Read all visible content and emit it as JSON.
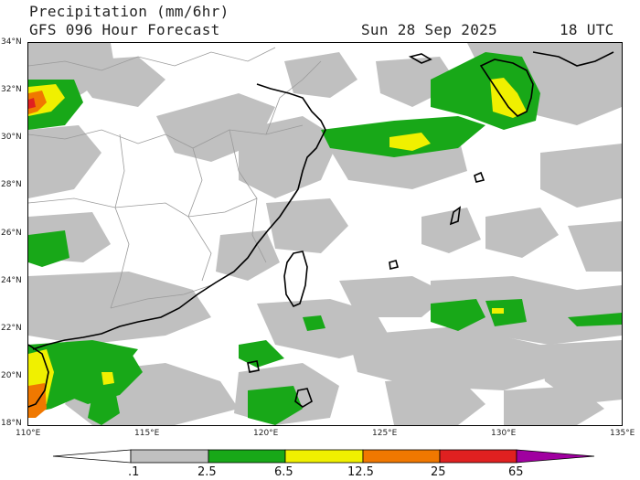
{
  "header": {
    "title": "Precipitation (mm/6hr)",
    "subtitle": "GFS 096 Hour Forecast",
    "date": "Sun 28 Sep 2025",
    "time": "18 UTC"
  },
  "map": {
    "lat_labels": [
      "34°N",
      "32°N",
      "30°N",
      "28°N",
      "26°N",
      "24°N",
      "22°N",
      "20°N",
      "18°N"
    ],
    "lon_labels": [
      "110°E",
      "115°E",
      "120°E",
      "125°E",
      "130°E",
      "135°E"
    ],
    "extent": {
      "lon_min": 110,
      "lon_max": 135,
      "lat_min": 18,
      "lat_max": 34
    }
  },
  "colorbar": {
    "labels": [
      ".1",
      "2.5",
      "6.5",
      "12.5",
      "25",
      "65"
    ],
    "colors": [
      "#ffffff",
      "#c0c0c0",
      "#18a818",
      "#f0f000",
      "#f07800",
      "#e02020",
      "#a000a0"
    ]
  }
}
